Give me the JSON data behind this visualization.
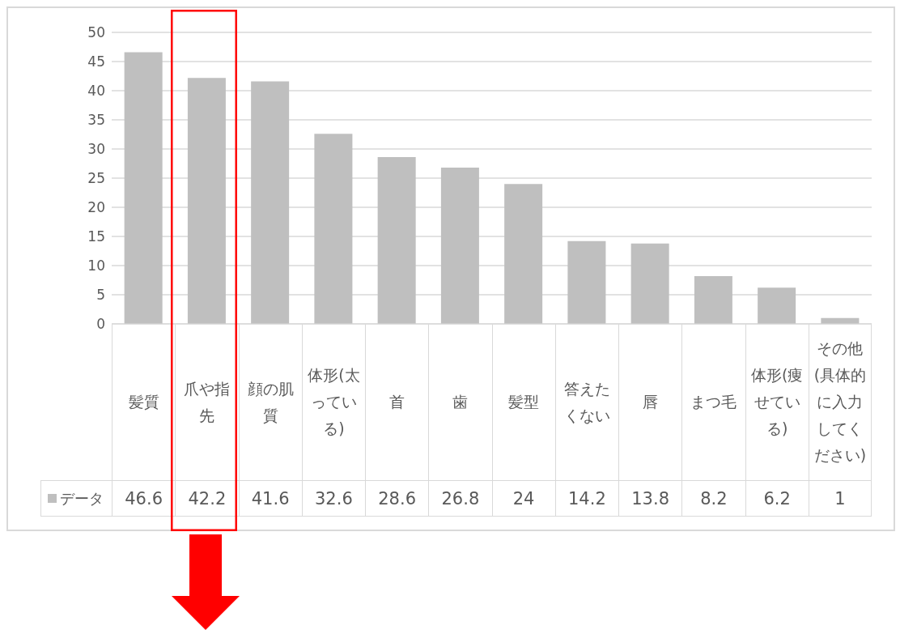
{
  "chart_data": {
    "type": "bar",
    "categories": [
      "髪質",
      "爪や指先",
      "顔の肌質",
      "体形(太っている)",
      "首",
      "歯",
      "髪型",
      "答えたくない",
      "唇",
      "まつ毛",
      "体形(痩せている)",
      "その他(具体的に入力してください)"
    ],
    "series": [
      {
        "name": "データ",
        "color": "#bfbfbf",
        "values": [
          46.6,
          42.2,
          41.6,
          32.6,
          28.6,
          26.8,
          24,
          14.2,
          13.8,
          8.2,
          6.2,
          1
        ]
      }
    ],
    "ylim": [
      0,
      50
    ],
    "yticks": [
      0,
      5,
      10,
      15,
      20,
      25,
      30,
      35,
      40,
      45,
      50
    ],
    "grid": "y",
    "legend": "bottom",
    "data_labels": true
  }
}
